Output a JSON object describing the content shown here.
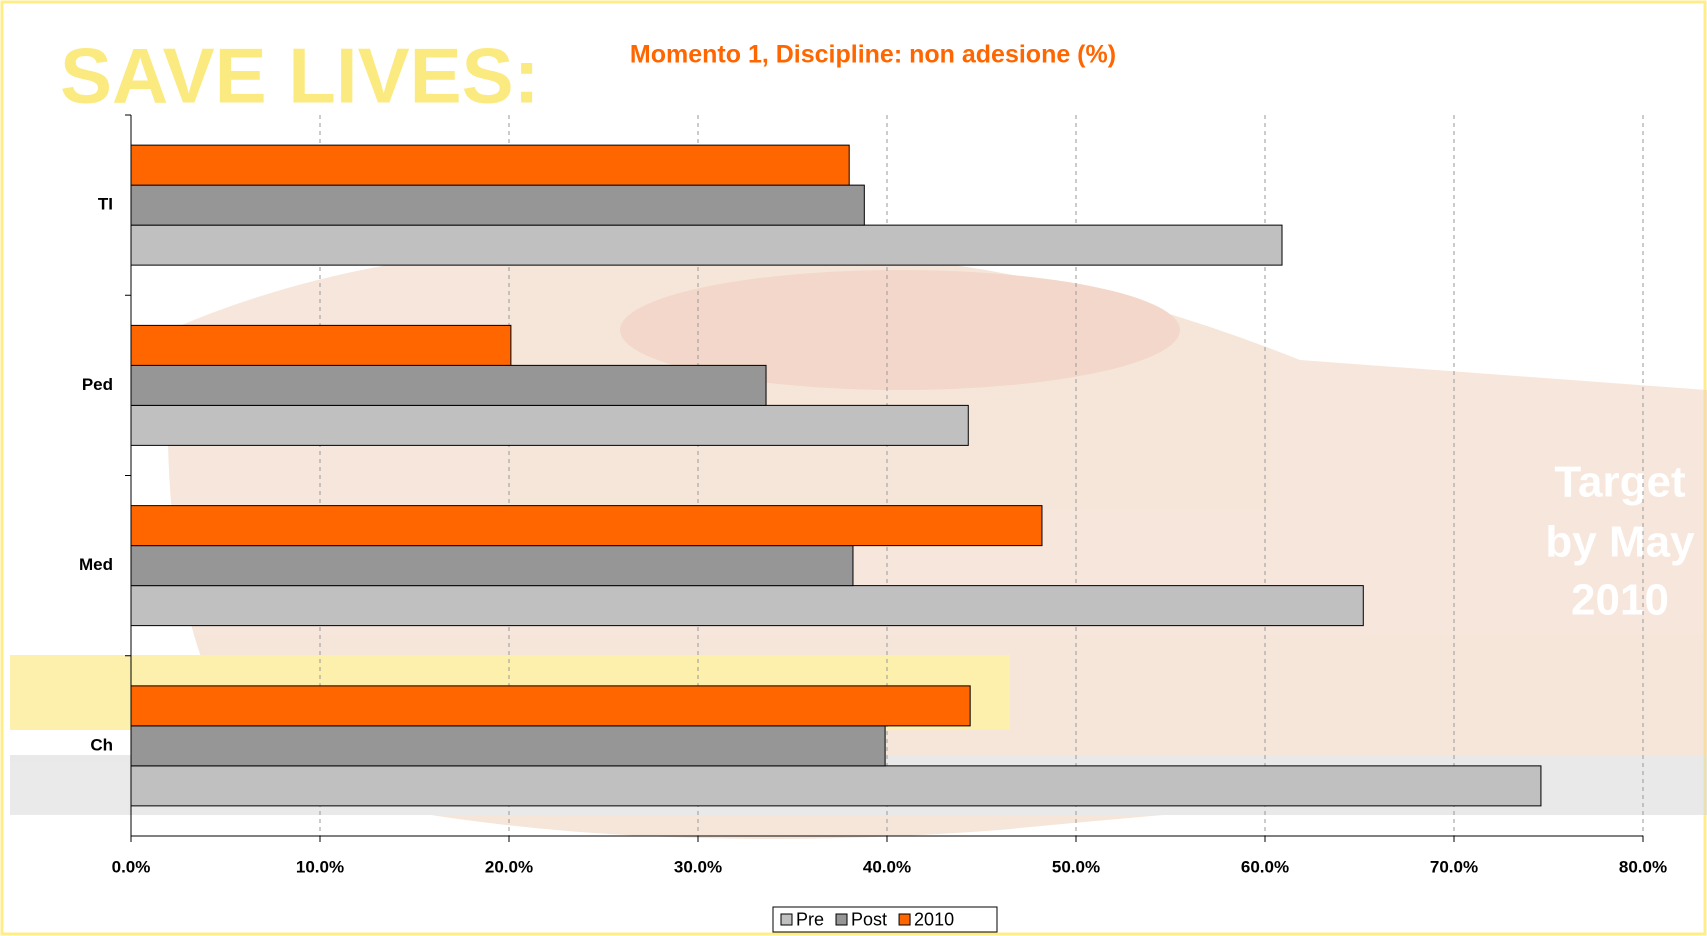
{
  "chart_data": {
    "type": "bar",
    "orientation": "horizontal",
    "title": "Momento 1, Discipline: non adesione (%)",
    "annotations": [
      "SAVE LIVES:",
      "Target",
      "by May",
      "2010"
    ],
    "categories": [
      "Ch",
      "Med",
      "Ped",
      "TI"
    ],
    "series": [
      {
        "name": "Pre",
        "color": "#c0c0c0",
        "values": [
          74.6,
          65.2,
          44.3,
          60.9
        ]
      },
      {
        "name": "Post",
        "color": "#969696",
        "values": [
          39.9,
          38.2,
          33.6,
          38.8
        ]
      },
      {
        "name": "2010",
        "color": "#ff6600",
        "values": [
          44.4,
          48.2,
          20.1,
          38.0
        ]
      }
    ],
    "xlim": [
      0,
      80
    ],
    "xticks": [
      {
        "value": 0,
        "label": "0.0%"
      },
      {
        "value": 10,
        "label": "10.0%"
      },
      {
        "value": 20,
        "label": "20.0%"
      },
      {
        "value": 30,
        "label": "30.0%"
      },
      {
        "value": 40,
        "label": "40.0%"
      },
      {
        "value": 50,
        "label": "50.0%"
      },
      {
        "value": 60,
        "label": "60.0%"
      },
      {
        "value": 70,
        "label": "70.0%"
      },
      {
        "value": 80,
        "label": "80.0%"
      }
    ],
    "grid": true,
    "legend": "bottom"
  }
}
